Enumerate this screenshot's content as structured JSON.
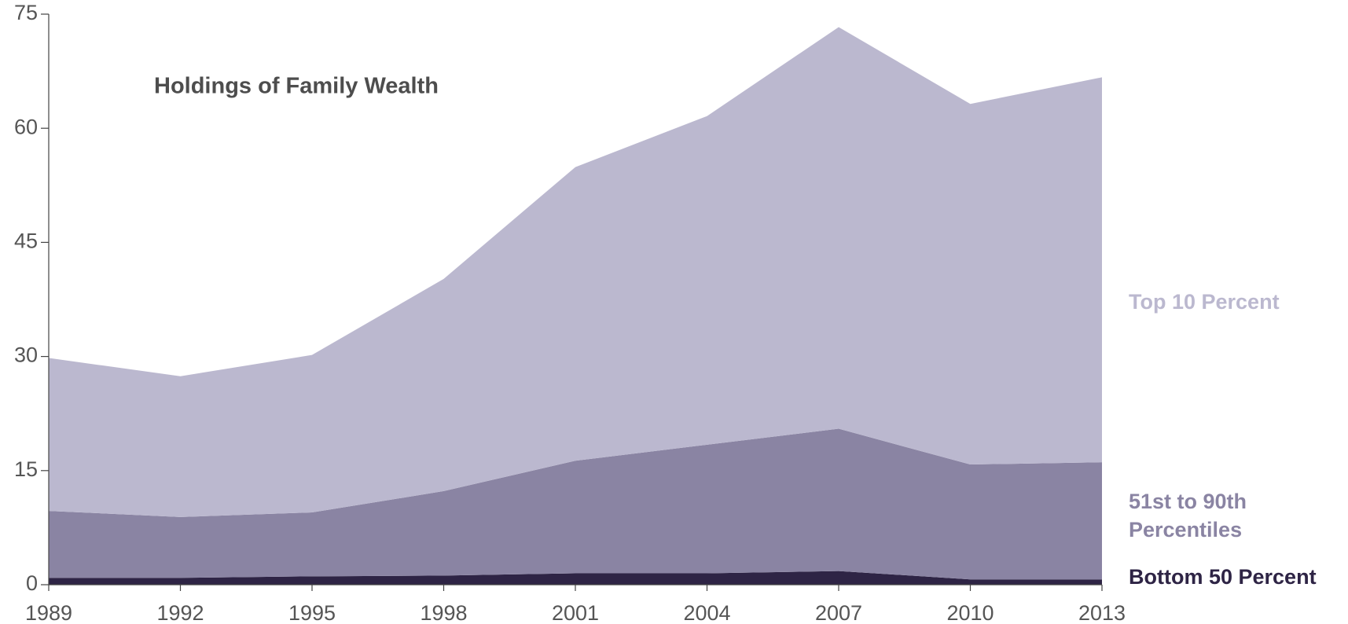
{
  "chart_data": {
    "type": "stacked_area",
    "title": "Holdings of Family Wealth",
    "x": [
      1989,
      1992,
      1995,
      1998,
      2001,
      2004,
      2007,
      2010,
      2013
    ],
    "series": [
      {
        "name": "Bottom 50 Percent",
        "color": "#2e2445",
        "values": [
          0.9,
          0.9,
          1.1,
          1.2,
          1.5,
          1.5,
          1.8,
          0.7,
          0.7
        ]
      },
      {
        "name": "51st to 90th Percentiles",
        "color": "#8a84a3",
        "values": [
          8.8,
          8.0,
          8.4,
          11.1,
          14.8,
          16.9,
          18.7,
          15.1,
          15.4
        ]
      },
      {
        "name": "Top 10 Percent",
        "color": "#bbb8cf",
        "values": [
          20.1,
          18.5,
          20.7,
          27.9,
          38.6,
          43.2,
          52.8,
          47.4,
          50.6
        ]
      }
    ],
    "xlim": [
      1989,
      2013
    ],
    "xticks": [
      1989,
      1992,
      1995,
      1998,
      2001,
      2004,
      2007,
      2010,
      2013
    ],
    "ylim": [
      0,
      75
    ],
    "yticks": [
      0,
      15,
      30,
      45,
      60,
      75
    ]
  }
}
